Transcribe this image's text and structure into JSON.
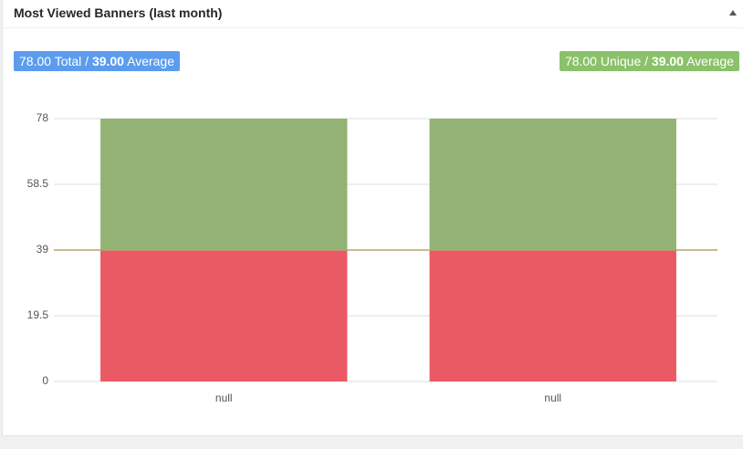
{
  "widget": {
    "title": "Most Viewed Banners (last month)"
  },
  "badges": [
    {
      "value": "78.00",
      "label": "Total /",
      "average": "39.00",
      "average_label": "Average",
      "color": "#5b9cef"
    },
    {
      "value": "78.00",
      "label": "Unique /",
      "average": "39.00",
      "average_label": "Average",
      "color": "#8ac16a"
    }
  ],
  "chart_data": {
    "type": "bar",
    "stacked": true,
    "categories": [
      "null",
      "null"
    ],
    "series": [
      {
        "color": "#ea5a64",
        "values": [
          39,
          39
        ]
      },
      {
        "color": "#93b374",
        "values": [
          39,
          39
        ]
      }
    ],
    "average_line": {
      "value": 39,
      "color": "#b5a470"
    },
    "ylim": [
      0,
      78
    ],
    "yticks": [
      0,
      19.5,
      39,
      58.5,
      78
    ],
    "grid": true
  }
}
